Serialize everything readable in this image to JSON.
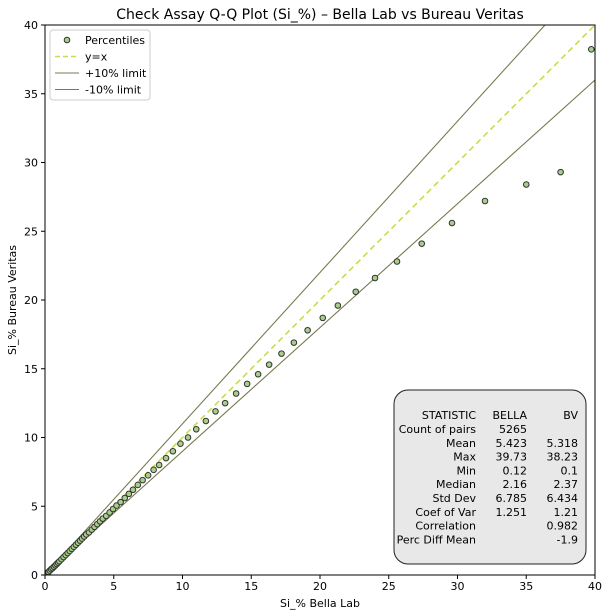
{
  "chart_data": {
    "type": "scatter",
    "title": "Check Assay Q-Q Plot (Si_%) – Bella Lab vs Bureau Veritas",
    "xlabel": "Si_% Bella Lab",
    "ylabel": "Si_% Bureau Veritas",
    "xlim": [
      0,
      40
    ],
    "ylim": [
      0,
      40
    ],
    "xticks": [
      0,
      5,
      10,
      15,
      20,
      25,
      30,
      35,
      40
    ],
    "yticks": [
      0,
      5,
      10,
      15,
      20,
      25,
      30,
      35,
      40
    ],
    "legend_position": "top-left",
    "legend": [
      {
        "label": "Percentiles",
        "kind": "marker",
        "color": "#a8cf8a",
        "edge": "#333333"
      },
      {
        "label": "y=x",
        "kind": "dashed",
        "color": "#c8dc50"
      },
      {
        "label": "+10% limit",
        "kind": "line",
        "color": "#7a7a50"
      },
      {
        "label": "-10% limit",
        "kind": "line",
        "color": "#7a7a50"
      }
    ],
    "lines": [
      {
        "name": "y=x",
        "slope": 1.0,
        "color": "#c8dc50",
        "dashed": true
      },
      {
        "name": "+10% limit",
        "slope": 1.1,
        "color": "#7a7a50",
        "dashed": false
      },
      {
        "name": "-10% limit",
        "slope": 0.9,
        "color": "#7a7a50",
        "dashed": false
      }
    ],
    "series": [
      {
        "name": "Percentiles",
        "points": [
          [
            0.15,
            0.12
          ],
          [
            0.25,
            0.22
          ],
          [
            0.35,
            0.32
          ],
          [
            0.45,
            0.42
          ],
          [
            0.55,
            0.5
          ],
          [
            0.65,
            0.6
          ],
          [
            0.75,
            0.7
          ],
          [
            0.85,
            0.8
          ],
          [
            0.95,
            0.9
          ],
          [
            1.05,
            1.0
          ],
          [
            1.2,
            1.15
          ],
          [
            1.35,
            1.3
          ],
          [
            1.5,
            1.45
          ],
          [
            1.65,
            1.6
          ],
          [
            1.8,
            1.75
          ],
          [
            1.95,
            1.9
          ],
          [
            2.1,
            2.05
          ],
          [
            2.25,
            2.2
          ],
          [
            2.4,
            2.35
          ],
          [
            2.55,
            2.5
          ],
          [
            2.7,
            2.65
          ],
          [
            2.85,
            2.8
          ],
          [
            3.0,
            2.95
          ],
          [
            3.2,
            3.1
          ],
          [
            3.4,
            3.3
          ],
          [
            3.6,
            3.5
          ],
          [
            3.8,
            3.7
          ],
          [
            4.0,
            3.9
          ],
          [
            4.2,
            4.1
          ],
          [
            4.45,
            4.3
          ],
          [
            4.7,
            4.55
          ],
          [
            4.95,
            4.8
          ],
          [
            5.2,
            5.05
          ],
          [
            5.5,
            5.3
          ],
          [
            5.8,
            5.6
          ],
          [
            6.1,
            5.9
          ],
          [
            6.4,
            6.2
          ],
          [
            6.75,
            6.55
          ],
          [
            7.1,
            6.9
          ],
          [
            7.5,
            7.25
          ],
          [
            7.9,
            7.65
          ],
          [
            8.3,
            8.0
          ],
          [
            8.8,
            8.5
          ],
          [
            9.3,
            9.0
          ],
          [
            9.85,
            9.55
          ],
          [
            10.4,
            10.0
          ],
          [
            11.0,
            10.6
          ],
          [
            11.7,
            11.2
          ],
          [
            12.4,
            11.9
          ],
          [
            13.1,
            12.5
          ],
          [
            13.9,
            13.2
          ],
          [
            14.7,
            13.9
          ],
          [
            15.5,
            14.6
          ],
          [
            16.3,
            15.3
          ],
          [
            17.2,
            16.1
          ],
          [
            18.1,
            16.9
          ],
          [
            19.1,
            17.8
          ],
          [
            20.2,
            18.7
          ],
          [
            21.3,
            19.6
          ],
          [
            22.6,
            20.6
          ],
          [
            24.0,
            21.6
          ],
          [
            25.6,
            22.8
          ],
          [
            27.4,
            24.1
          ],
          [
            29.6,
            25.6
          ],
          [
            32.0,
            27.2
          ],
          [
            35.0,
            28.4
          ],
          [
            37.5,
            29.3
          ],
          [
            39.73,
            38.23
          ]
        ]
      }
    ],
    "stats_box": {
      "headers": [
        "STATISTIC",
        "BELLA",
        "BV"
      ],
      "rows": [
        [
          "Count of pairs",
          "5265",
          ""
        ],
        [
          "Mean",
          "5.423",
          "5.318"
        ],
        [
          "Max",
          "39.73",
          "38.23"
        ],
        [
          "Min",
          "0.12",
          "0.1"
        ],
        [
          "Median",
          "2.16",
          "2.37"
        ],
        [
          "Std Dev",
          "6.785",
          "6.434"
        ],
        [
          "Coef of Var",
          "1.251",
          "1.21"
        ],
        [
          "Correlation",
          "",
          "0.982"
        ],
        [
          "Perc Diff Mean",
          "",
          "-1.9"
        ]
      ]
    }
  }
}
